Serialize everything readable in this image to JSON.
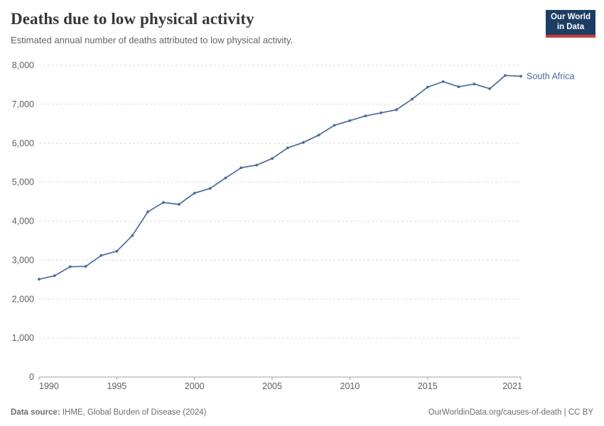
{
  "header": {
    "title": "Deaths due to low physical activity",
    "subtitle": "Estimated annual number of deaths attributed to low physical activity.",
    "logo": {
      "line1": "Our World",
      "line2": "in Data"
    }
  },
  "footer": {
    "source_label": "Data source:",
    "source_text": " IHME, Global Burden of Disease (2024)",
    "right_text": "OurWorldinData.org/causes-of-death | CC BY"
  },
  "colors": {
    "line": "#4c6a9c",
    "entity_label": "#4c6a9c",
    "gridline": "#dcdcdc",
    "axis": "#a0a0a0",
    "tick_label": "#606060",
    "logo_bg": "#1d3d63",
    "logo_bar": "#c7393f"
  },
  "chart_data": {
    "type": "line",
    "title": "Deaths due to low physical activity",
    "xlabel": "",
    "ylabel": "",
    "xlim": [
      1990,
      2021
    ],
    "ylim": [
      0,
      8000
    ],
    "xticks": [
      1990,
      1995,
      2000,
      2005,
      2010,
      2015,
      2021
    ],
    "yticks": [
      0,
      1000,
      2000,
      3000,
      4000,
      5000,
      6000,
      7000,
      8000
    ],
    "grid": "horizontal-dashed",
    "legend_position": "end-of-line-label",
    "series": [
      {
        "name": "South Africa",
        "color": "#4c6a9c",
        "x": [
          1990,
          1991,
          1992,
          1993,
          1994,
          1995,
          1996,
          1997,
          1998,
          1999,
          2000,
          2001,
          2002,
          2003,
          2004,
          2005,
          2006,
          2007,
          2008,
          2009,
          2010,
          2011,
          2012,
          2013,
          2014,
          2015,
          2016,
          2017,
          2018,
          2019,
          2020,
          2021
        ],
        "values": [
          2510,
          2600,
          2830,
          2840,
          3120,
          3230,
          3630,
          4240,
          4480,
          4430,
          4720,
          4840,
          5110,
          5370,
          5440,
          5610,
          5880,
          6020,
          6210,
          6460,
          6580,
          6700,
          6780,
          6860,
          7130,
          7440,
          7580,
          7450,
          7520,
          7400,
          7740,
          7720
        ]
      }
    ]
  }
}
